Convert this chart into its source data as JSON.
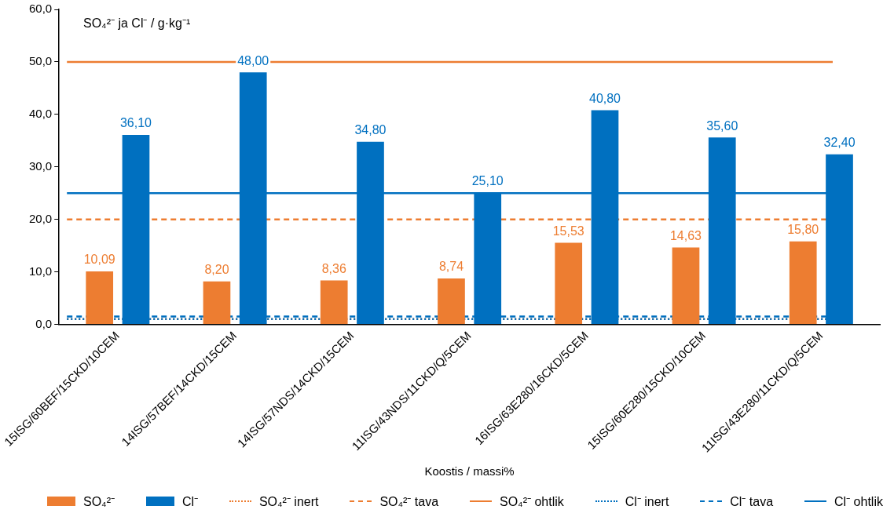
{
  "chart_data": {
    "type": "bar",
    "ylabel": "SO₄²⁻ ja Cl⁻ / g·kg⁻¹",
    "xlabel": "Koostis / massi%",
    "categories": [
      "15ISG/60BEF/15CKD/10CEM",
      "14ISG/57BEF/14CKD/15CEM",
      "14ISG/57NDS/14CKD/15CEM",
      "11ISG/43NDS/11CKD/Q/5CEM",
      "16ISG/63E280/16CKD/5CEM",
      "15ISG/60E280/15CKD/10CEM",
      "11ISG/43E280/11CKD/Q/5CEM"
    ],
    "series": [
      {
        "name": "SO₄²⁻",
        "color": "#ed7d31",
        "values": [
          10.09,
          8.2,
          8.36,
          8.74,
          15.53,
          14.63,
          15.8
        ],
        "value_labels": [
          "10,09",
          "8,20",
          "8,36",
          "8,74",
          "15,53",
          "14,63",
          "15,80"
        ]
      },
      {
        "name": "Cl⁻",
        "color": "#0070c0",
        "values": [
          36.1,
          48.0,
          34.8,
          25.1,
          40.8,
          35.6,
          32.4
        ],
        "value_labels": [
          "36,10",
          "48,00",
          "34,80",
          "25,10",
          "40,80",
          "35,60",
          "32,40"
        ]
      }
    ],
    "ylim": [
      0,
      60
    ],
    "yticks": [
      {
        "value": 0,
        "label": "0,0"
      },
      {
        "value": 10,
        "label": "10,0"
      },
      {
        "value": 20,
        "label": "20,0"
      },
      {
        "value": 30,
        "label": "30,0"
      },
      {
        "value": 40,
        "label": "40,0"
      },
      {
        "value": 50,
        "label": "50,0"
      },
      {
        "value": 60,
        "label": "60,0"
      }
    ],
    "ref_lines": [
      {
        "axis": "y",
        "value": 1.0,
        "label": "SO₄²⁻ inert",
        "color": "#ed7d31",
        "line_style": "dotted"
      },
      {
        "axis": "y",
        "value": 20,
        "label": "SO₄²⁻ tava",
        "color": "#ed7d31",
        "line_style": "dashed"
      },
      {
        "axis": "y",
        "value": 50,
        "label": "SO₄²⁻ ohtlik",
        "color": "#ed7d31",
        "line_style": "solid"
      },
      {
        "axis": "y",
        "value": 1.0,
        "label": "Cl⁻ inert",
        "color": "#0070c0",
        "line_style": "dotted"
      },
      {
        "axis": "y",
        "value": 1.5,
        "label": "Cl⁻ tava",
        "color": "#0070c0",
        "line_style": "dashed"
      },
      {
        "axis": "y",
        "value": 25,
        "label": "Cl⁻ ohtlik",
        "color": "#0070c0",
        "line_style": "solid"
      }
    ],
    "grid": false,
    "legend": "bottom"
  }
}
